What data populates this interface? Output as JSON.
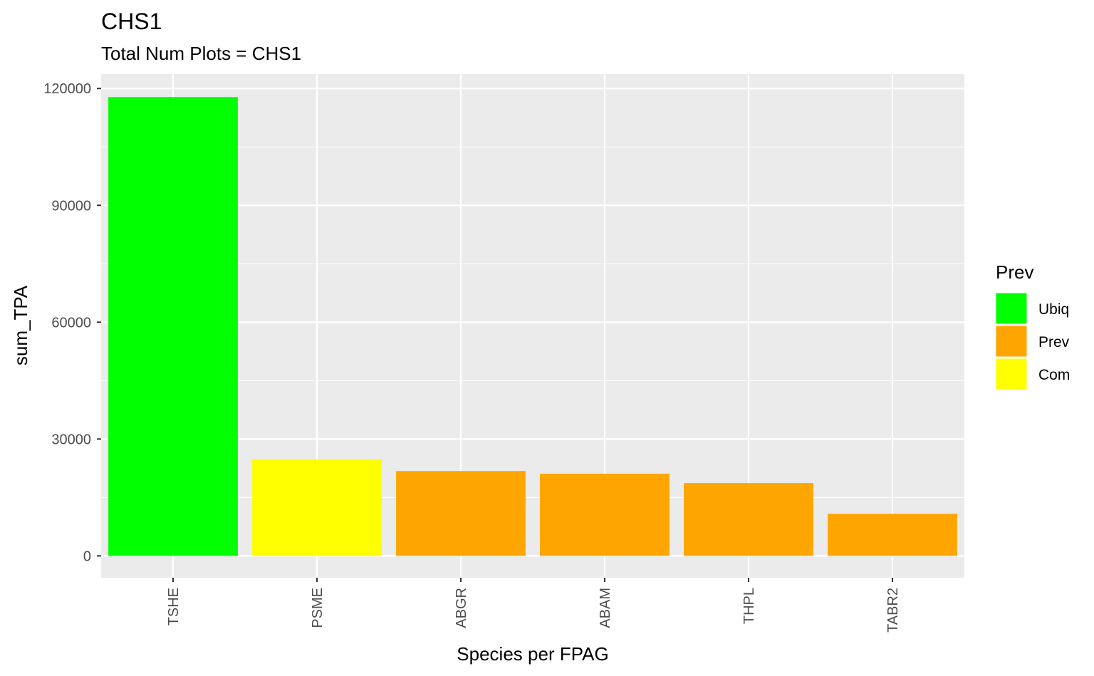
{
  "chart_data": {
    "type": "bar",
    "title": "CHS1",
    "subtitle": "Total Num Plots = CHS1",
    "xlabel": "Species per FPAG",
    "ylabel": "sum_TPA",
    "categories": [
      "TSHE",
      "PSME",
      "ABGR",
      "ABAM",
      "THPL",
      "TABR2"
    ],
    "values": [
      117800,
      24800,
      21800,
      21100,
      18700,
      10800
    ],
    "bar_groups": [
      "Ubiq",
      "Com",
      "Prev",
      "Prev",
      "Prev",
      "Prev"
    ],
    "ylim": [
      -5600,
      123700
    ],
    "yticks": [
      0,
      30000,
      60000,
      90000,
      120000
    ],
    "ytick_labels": [
      "0",
      "30000",
      "60000",
      "90000",
      "120000"
    ],
    "grid": true,
    "legend": {
      "title": "Prev",
      "position": "right",
      "entries": [
        {
          "label": "Ubiq",
          "color": "#00FF00"
        },
        {
          "label": "Prev",
          "color": "#FFA500"
        },
        {
          "label": "Com",
          "color": "#FFFF00"
        }
      ]
    },
    "colors": {
      "panel_background": "#EBEBEB",
      "grid_line": "#FFFFFF",
      "tick_text": "#4D4D4D",
      "tick_mark": "#333333"
    }
  }
}
